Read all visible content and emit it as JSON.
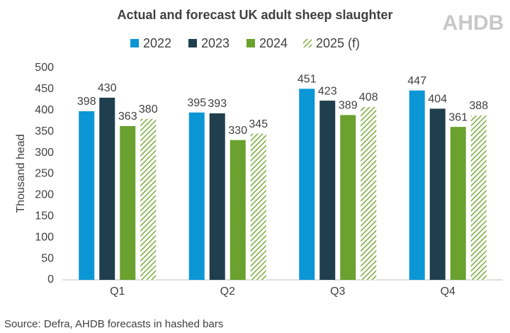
{
  "chart_data": {
    "type": "bar",
    "title": "Actual and forecast UK adult sheep slaughter",
    "logo": "AHDB",
    "ylabel": "Thousand head",
    "source": "Source: Defra, AHDB forecasts in hashed bars",
    "categories": [
      "Q1",
      "Q2",
      "Q3",
      "Q4"
    ],
    "series": [
      {
        "name": "2022",
        "color": "#0b96d6",
        "values": [
          398,
          395,
          451,
          447
        ]
      },
      {
        "name": "2023",
        "color": "#1f3f4e",
        "values": [
          430,
          393,
          423,
          404
        ]
      },
      {
        "name": "2024",
        "color": "#6aa12f",
        "values": [
          363,
          330,
          389,
          361
        ]
      },
      {
        "name": "2025 (f)",
        "color": "#7aab3c",
        "pattern": "hatched",
        "values": [
          380,
          345,
          408,
          388
        ]
      }
    ],
    "ylim": [
      0,
      500
    ],
    "yticks": [
      0,
      50,
      100,
      150,
      200,
      250,
      300,
      350,
      400,
      450,
      500
    ],
    "grid": false
  }
}
